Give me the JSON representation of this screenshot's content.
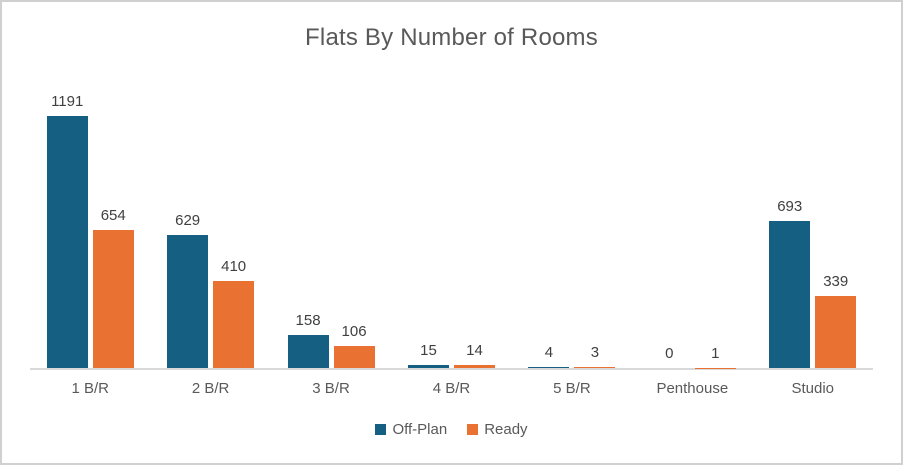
{
  "title": "Flats By Number of Rooms",
  "chart_data": {
    "type": "bar",
    "title": "Flats By Number of Rooms",
    "categories": [
      "1 B/R",
      "2 B/R",
      "3 B/R",
      "4 B/R",
      "5 B/R",
      "Penthouse",
      "Studio"
    ],
    "series": [
      {
        "name": "Off-Plan",
        "color": "#156082",
        "values": [
          1191,
          629,
          158,
          15,
          4,
          0,
          693
        ]
      },
      {
        "name": "Ready",
        "color": "#E97132",
        "values": [
          654,
          410,
          106,
          14,
          3,
          1,
          339
        ]
      }
    ],
    "xlabel": "",
    "ylabel": "",
    "ylim": [
      0,
      1200
    ],
    "grid": false,
    "y_axis_visible": false,
    "data_labels": true,
    "legend_position": "bottom",
    "axis_line_color": "#D9D9D9",
    "title_color": "#595959",
    "label_color": "#404040",
    "tick_label_color": "#595959"
  }
}
